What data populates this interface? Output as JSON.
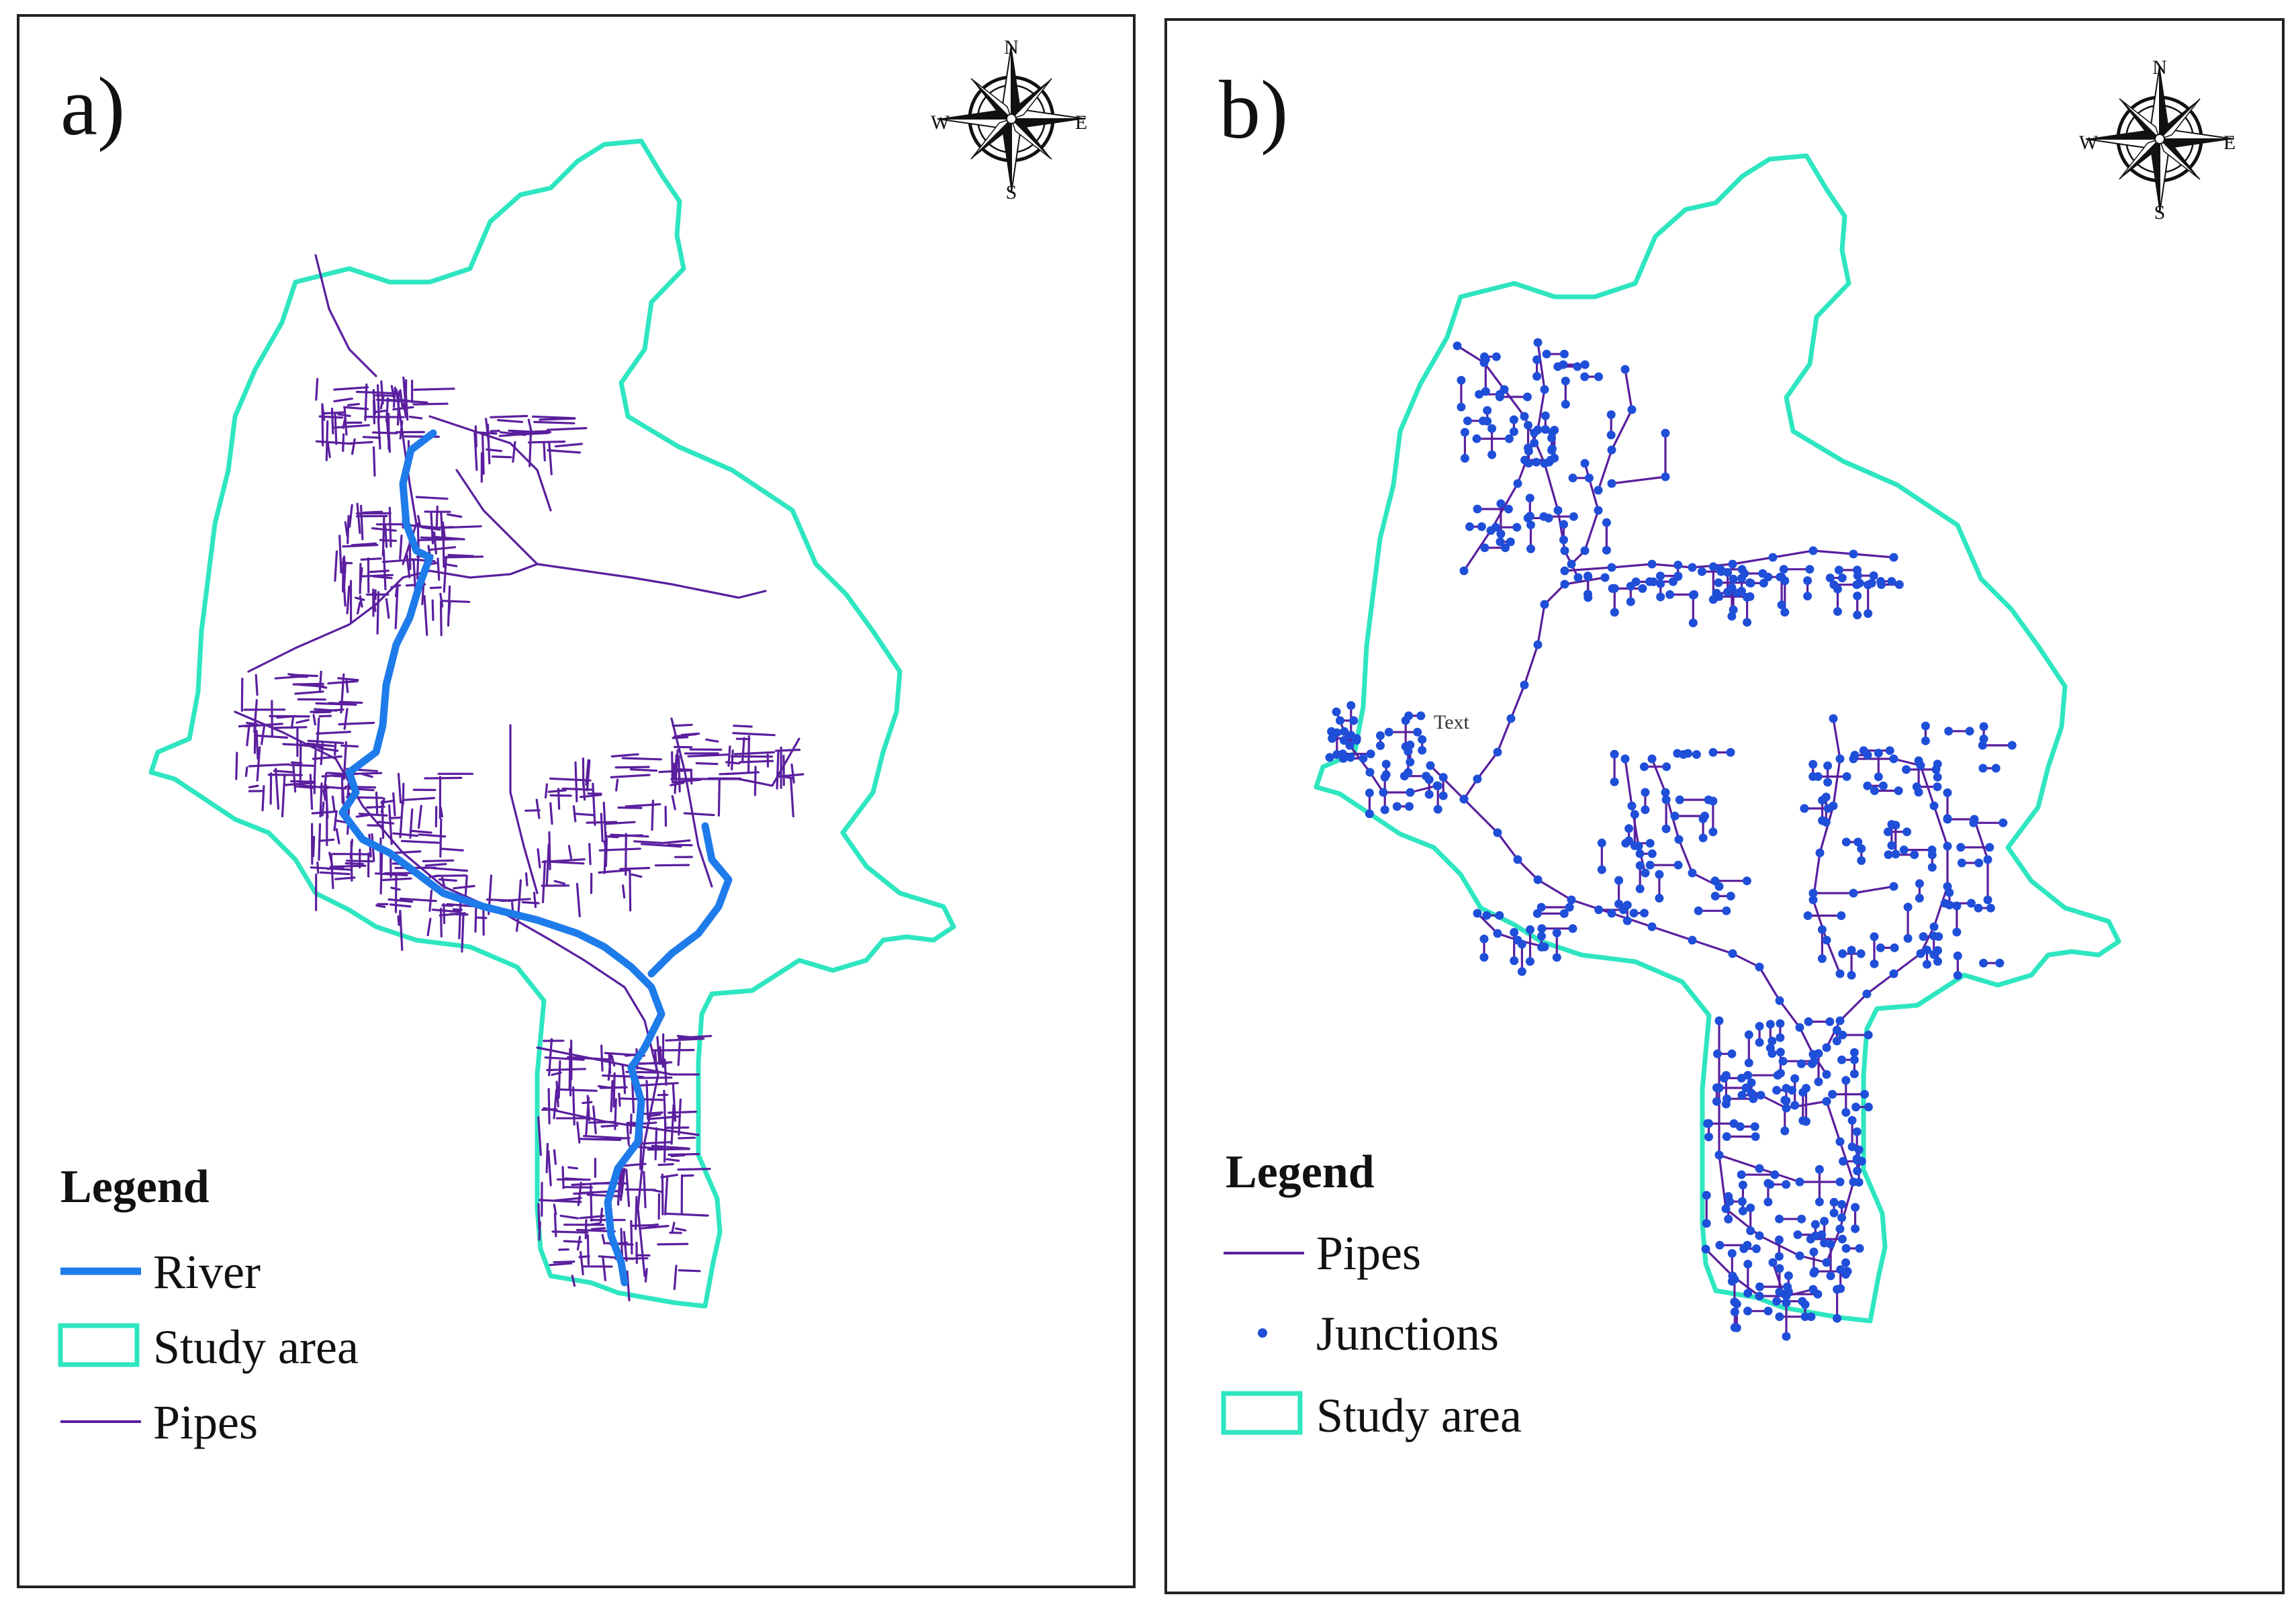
{
  "panels": [
    {
      "id": "a",
      "label": "a)",
      "legend": {
        "title": "Legend",
        "items": [
          {
            "symbol": "line",
            "label": "River",
            "color": "#1e7bea"
          },
          {
            "symbol": "polygon",
            "label": "Study area",
            "color": "#2ee6c0"
          },
          {
            "symbol": "line",
            "label": "Pipes",
            "color": "#5a1f9e"
          }
        ]
      },
      "north_arrow": {
        "N": "N",
        "S": "S",
        "E": "E",
        "W": "W"
      }
    },
    {
      "id": "b",
      "label": "b)",
      "legend": {
        "title": "Legend",
        "items": [
          {
            "symbol": "line",
            "label": "Pipes",
            "color": "#5a1f9e"
          },
          {
            "symbol": "point",
            "label": "Junctions",
            "color": "#1f4fd8"
          },
          {
            "symbol": "polygon",
            "label": "Study area",
            "color": "#2ee6c0"
          }
        ]
      },
      "north_arrow": {
        "N": "N",
        "S": "S",
        "E": "E",
        "W": "W"
      },
      "annotation": "Text"
    }
  ],
  "colors": {
    "boundary": "#2ee6c0",
    "pipes": "#5a1f9e",
    "river": "#1e7bea",
    "junctions": "#1f4fd8",
    "frame": "#222222"
  }
}
